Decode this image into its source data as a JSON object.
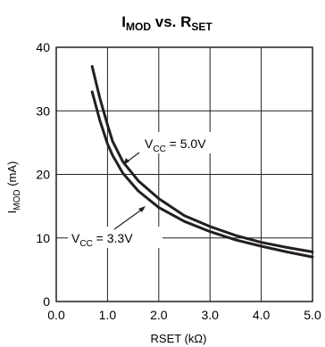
{
  "chart_data": {
    "type": "line",
    "title": {
      "main": "I",
      "main_sub": "MOD",
      "mid": " vs. R",
      "mid_sub": "SET"
    },
    "xlabel": "RSET (kΩ)",
    "ylabel": {
      "main": "I",
      "sub": "MOD",
      "rest": " (mA)"
    },
    "xlim": [
      0,
      5
    ],
    "ylim": [
      0,
      40
    ],
    "x_ticks": [
      "0.0",
      "1.0",
      "2.0",
      "3.0",
      "4.0",
      "5.0"
    ],
    "y_ticks": [
      "0",
      "10",
      "20",
      "30",
      "40"
    ],
    "grid": true,
    "series": [
      {
        "name": "VCC = 5.0V",
        "label": {
          "main": "V",
          "sub": "CC",
          "rest": " = 5.0V"
        },
        "x": [
          0.7,
          0.85,
          1.0,
          1.1,
          1.3,
          1.6,
          2.0,
          2.5,
          3.0,
          3.5,
          4.0,
          4.5,
          5.0
        ],
        "y": [
          37.0,
          32.0,
          27.8,
          25.2,
          22.0,
          19.0,
          16.2,
          13.5,
          11.8,
          10.4,
          9.3,
          8.5,
          7.8
        ]
      },
      {
        "name": "VCC = 3.3V",
        "label": {
          "main": "V",
          "sub": "CC",
          "rest": " = 3.3V"
        },
        "x": [
          0.7,
          0.85,
          1.0,
          1.1,
          1.3,
          1.6,
          2.0,
          2.5,
          3.0,
          3.5,
          4.0,
          4.5,
          5.0
        ],
        "y": [
          33.0,
          28.5,
          24.8,
          23.0,
          20.2,
          17.4,
          14.8,
          12.6,
          11.0,
          9.7,
          8.7,
          7.8,
          7.0
        ]
      }
    ]
  }
}
